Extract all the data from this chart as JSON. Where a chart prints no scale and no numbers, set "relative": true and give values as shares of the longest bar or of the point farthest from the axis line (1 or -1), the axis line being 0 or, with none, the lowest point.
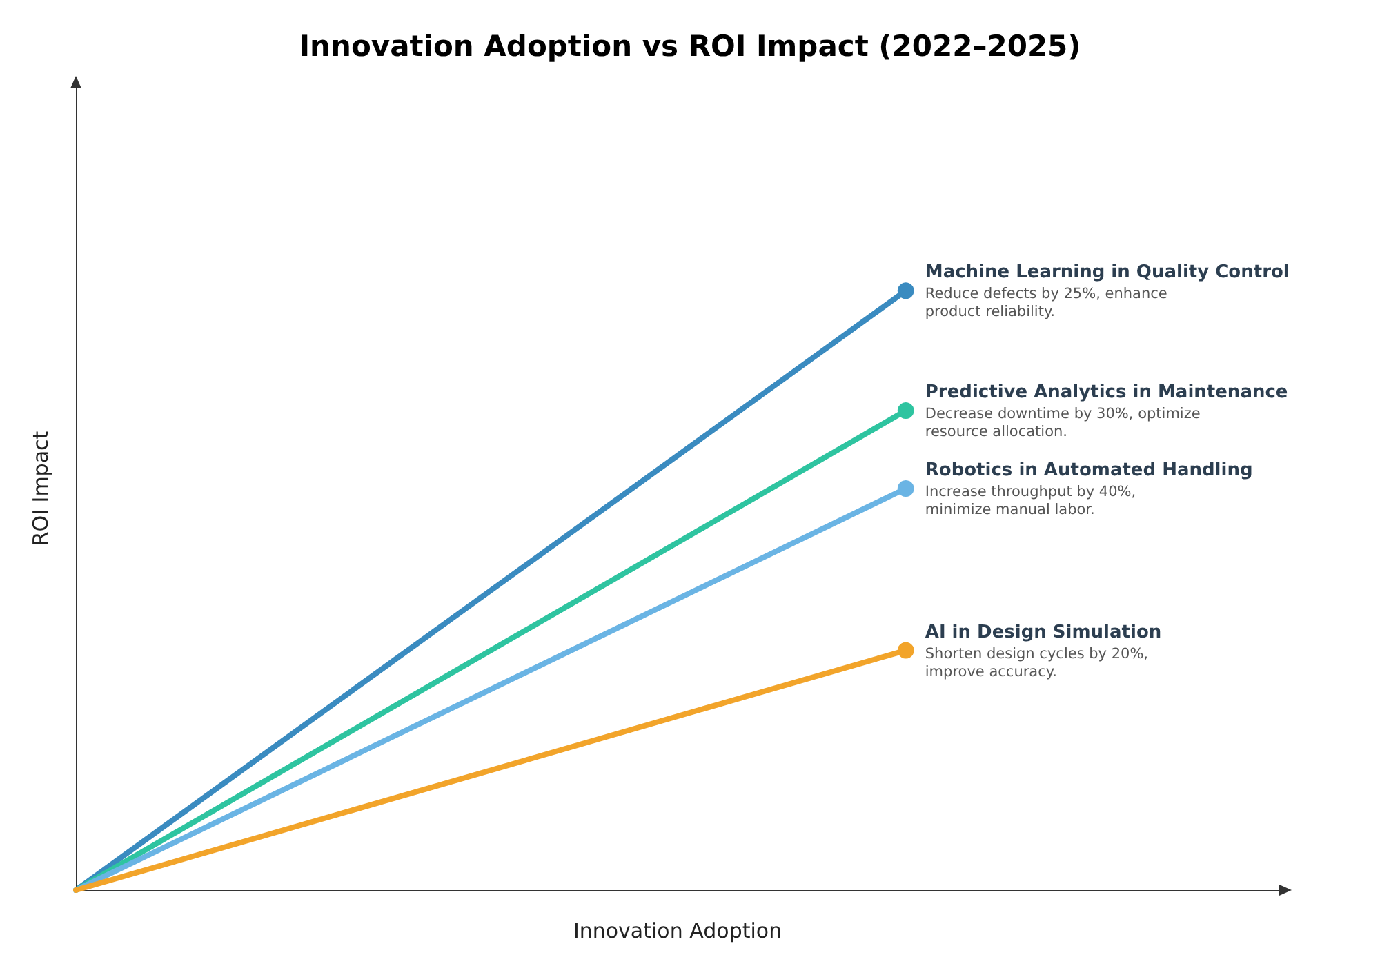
{
  "chart_data": {
    "type": "line",
    "title": "Innovation Adoption vs ROI Impact (2022–2025)",
    "xlabel": "Innovation Adoption",
    "ylabel": "ROI Impact",
    "relative": true,
    "categories": [
      null,
      null
    ],
    "marker": "circle",
    "grid": false,
    "legend": false,
    "series": [
      {
        "name": "Machine Learning in Quality Control",
        "color": "#3a8bc0",
        "values": [
          0,
          1
        ]
      },
      {
        "name": "Predictive Analytics in Maintenance",
        "color": "#2ec4a0",
        "values": [
          0,
          0.8
        ]
      },
      {
        "name": "Robotics in Automated Handling",
        "color": "#6ab4e4",
        "values": [
          0,
          0.67
        ]
      },
      {
        "name": "AI in Design Simulation",
        "color": "#f2a42a",
        "values": [
          0,
          0.4
        ]
      }
    ],
    "annotations": [
      "Reduce defects by 25%, enhance product reliability.",
      "Decrease downtime by 30%, optimize resource allocation.",
      "Increase throughput by 40%, minimize manual labor.",
      "Shorten design cycles by 20%, improve accuracy."
    ]
  }
}
